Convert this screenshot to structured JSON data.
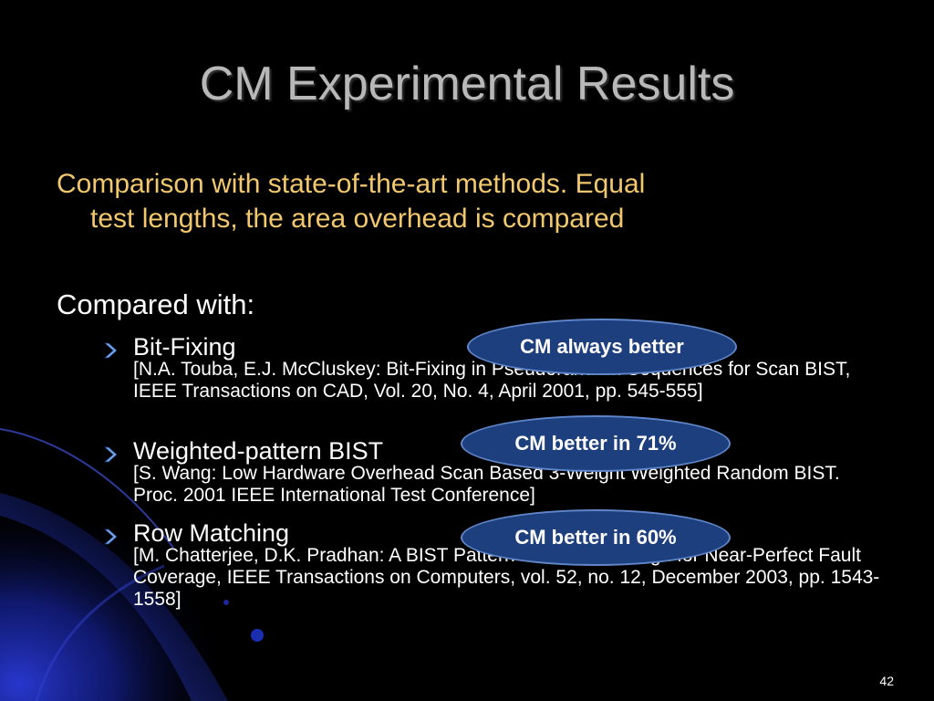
{
  "slide": {
    "title": "CM Experimental Results",
    "intro_line1": "Comparison with state-of-the-art methods. Equal",
    "intro_line2": "test lengths, the area overhead is compared",
    "compared_heading": "Compared with:",
    "items": [
      {
        "name": "Bit-Fixing",
        "ref": "[N.A. Touba, E.J. McCluskey: Bit-Fixing in Pseudorandom Sequences for Scan BIST, IEEE Transactions on CAD, Vol. 20, No. 4, April 2001, pp. 545-555]"
      },
      {
        "name": "Weighted-pattern BIST",
        "ref": "[S. Wang: Low Hardware Overhead Scan Based 3-Weight Weighted Random BIST. Proc. 2001 IEEE International Test Conference]"
      },
      {
        "name": "Row Matching",
        "ref": "[M. Chatterjee, D.K. Pradhan: A BIST Pattern Generator Design for Near-Perfect Fault Coverage, IEEE Transactions on Computers, vol. 52, no. 12, December 2003, pp. 1543-1558]"
      }
    ],
    "bubbles": [
      "CM always better",
      "CM better in 71%",
      "CM better in 60%"
    ],
    "page_number": "42"
  },
  "colors": {
    "background": "#000000",
    "title": "#b8b8b8",
    "intro": "#f2c86e",
    "body_text": "#ffffff",
    "bubble_fill": "#1e3f7e",
    "bubble_border": "#5f86c8",
    "decor_blue": "#1a2fb0"
  },
  "icons": {
    "bullet": "chevron-arrow-icon"
  }
}
